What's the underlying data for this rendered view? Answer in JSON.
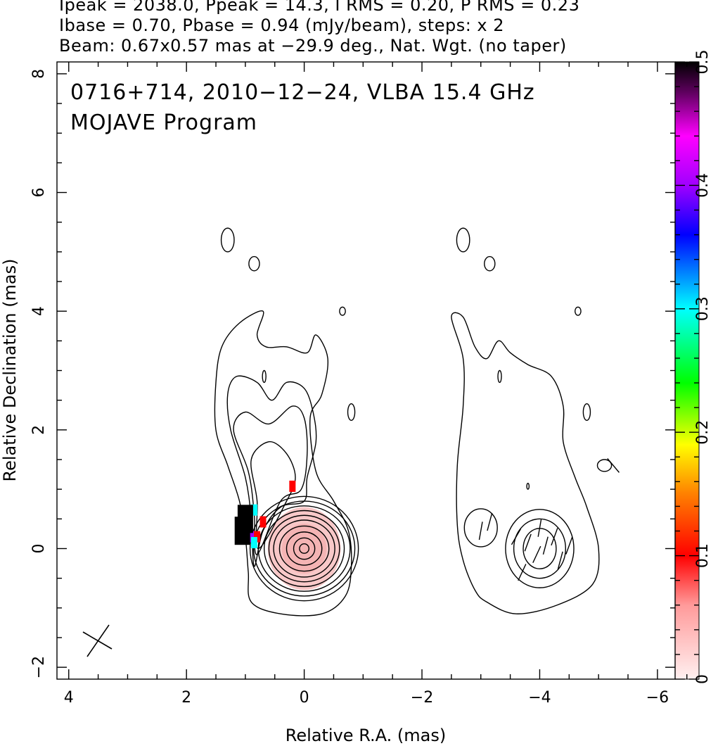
{
  "header": {
    "line1": "Ipeak = 2038.0, Ppeak = 14.3, I RMS = 0.20, P RMS = 0.23",
    "line2": "Ibase = 0.70, Pbase = 0.94 (mJy/beam), steps: x 2",
    "line3": "Beam: 0.67x0.57 mas at −29.9 deg., Nat. Wgt. (no taper)"
  },
  "plot_text": {
    "line1": "0716+714, 2010−12−24, VLBA 15.4 GHz",
    "line2": "MOJAVE Program"
  },
  "chart_data": {
    "type": "heatmap",
    "xlabel": "Relative R.A. (mas)",
    "ylabel": "Relative Declination (mas)",
    "xlim": [
      4.2,
      -6.3
    ],
    "ylim": [
      -2.2,
      8.2
    ],
    "xticks": [
      4,
      2,
      0,
      -2,
      -4,
      -6
    ],
    "xtick_labels": [
      "4",
      "2",
      "0",
      "−2",
      "−4",
      "−6"
    ],
    "yticks": [
      -2,
      0,
      2,
      4,
      6,
      8
    ],
    "ytick_labels": [
      "−2",
      "0",
      "2",
      "4",
      "6",
      "8"
    ],
    "colorbar": {
      "min": 0,
      "max": 0.5,
      "ticks": [
        0,
        0.1,
        0.2,
        0.3,
        0.4,
        0.5
      ],
      "tick_labels": [
        "0",
        "0.1",
        "0.2",
        "0.3",
        "0.4",
        "0.5"
      ]
    },
    "beam": {
      "major_mas": 0.67,
      "minor_mas": 0.57,
      "pa_deg": -29.9
    },
    "left_panel": {
      "core": {
        "x": 0,
        "y": 0
      },
      "contour_radii_mas": [
        [
          0.08,
          0.08
        ],
        [
          0.18,
          0.18
        ],
        [
          0.3,
          0.28
        ],
        [
          0.42,
          0.38
        ],
        [
          0.52,
          0.48
        ],
        [
          0.6,
          0.56
        ],
        [
          0.68,
          0.64
        ],
        [
          0.78,
          0.72
        ],
        [
          0.86,
          0.8
        ],
        [
          0.92,
          0.88
        ]
      ],
      "outer_contour": [
        [
          0.9,
          -0.9
        ],
        [
          0.4,
          -1.1
        ],
        [
          -0.3,
          -1.1
        ],
        [
          -0.7,
          -0.8
        ],
        [
          -0.8,
          -0.3
        ],
        [
          -0.75,
          0.3
        ],
        [
          -0.5,
          0.8
        ],
        [
          -0.2,
          1.3
        ],
        [
          -0.1,
          2.2
        ],
        [
          -0.3,
          2.6
        ],
        [
          -0.4,
          3.2
        ],
        [
          -0.2,
          3.6
        ],
        [
          -0.05,
          3.3
        ],
        [
          0.3,
          3.4
        ],
        [
          0.65,
          3.4
        ],
        [
          0.8,
          3.6
        ],
        [
          0.7,
          4.0
        ],
        [
          1.1,
          3.8
        ],
        [
          1.4,
          3.4
        ],
        [
          1.5,
          2.8
        ],
        [
          1.5,
          2.0
        ],
        [
          1.3,
          1.4
        ],
        [
          1.1,
          0.8
        ],
        [
          1.0,
          0.2
        ],
        [
          0.95,
          -0.4
        ]
      ],
      "polarization_pixels": [
        {
          "x": 0.2,
          "y": 1.05,
          "value": 0.1
        },
        {
          "x": 0.7,
          "y": 0.45,
          "value": 0.12
        },
        {
          "x": 0.85,
          "y": 0.65,
          "value": 0.3
        },
        {
          "x": 0.9,
          "y": 0.2,
          "value": 0.42
        },
        {
          "x": 0.8,
          "y": 0.2,
          "value": 0.14
        },
        {
          "x": 1.0,
          "y": 0.5,
          "value": 0.5
        },
        {
          "x": 1.05,
          "y": 0.3,
          "value": 0.5
        },
        {
          "x": 0.85,
          "y": 0.1,
          "value": 0.32
        }
      ]
    },
    "right_panel": {
      "core": {
        "x": -4.0,
        "y": 0
      },
      "contour_radii_mas": [
        [
          0.28,
          0.34
        ],
        [
          0.44,
          0.5
        ],
        [
          0.58,
          0.66
        ]
      ],
      "outer_contour": [
        [
          -3.1,
          -0.9
        ],
        [
          -3.6,
          -1.1
        ],
        [
          -4.3,
          -0.95
        ],
        [
          -4.9,
          -0.6
        ],
        [
          -5.0,
          0.0
        ],
        [
          -4.8,
          0.7
        ],
        [
          -4.6,
          1.2
        ],
        [
          -4.4,
          1.8
        ],
        [
          -4.4,
          2.4
        ],
        [
          -4.2,
          2.9
        ],
        [
          -3.8,
          3.1
        ],
        [
          -3.5,
          3.3
        ],
        [
          -3.3,
          3.5
        ],
        [
          -3.1,
          3.2
        ],
        [
          -2.9,
          3.4
        ],
        [
          -2.7,
          3.9
        ],
        [
          -2.5,
          3.9
        ],
        [
          -2.7,
          3.2
        ],
        [
          -2.7,
          2.4
        ],
        [
          -2.6,
          1.4
        ],
        [
          -2.6,
          0.4
        ],
        [
          -2.7,
          -0.2
        ],
        [
          -2.9,
          -0.7
        ]
      ]
    }
  }
}
